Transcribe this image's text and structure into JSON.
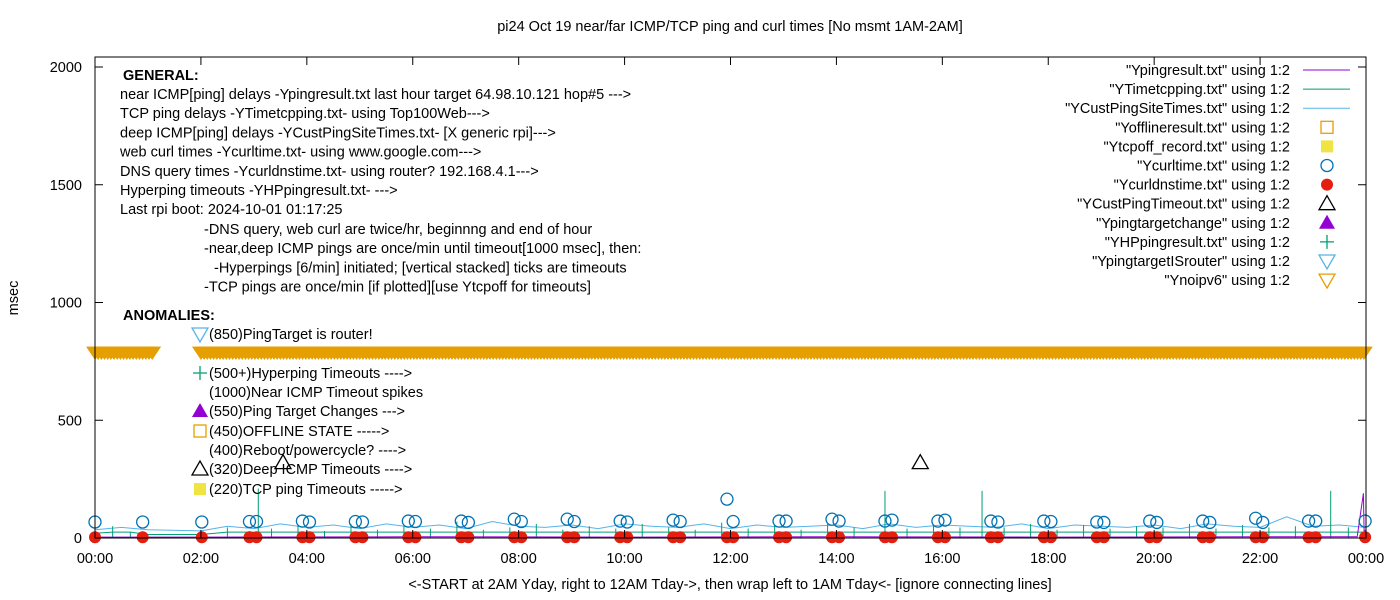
{
  "chart_data": {
    "type": "scatter",
    "title": "pi24 Oct 19  near/far ICMP/TCP ping and curl times [No msmt 1AM-2AM]",
    "xlabel": "<-START at 2AM Yday, right to 12AM Tday->, then wrap left to 1AM Tday<- [ignore connecting lines]",
    "ylabel": "msec",
    "ylim": [
      0,
      2000
    ],
    "yticks": [
      "0",
      "500",
      "1000",
      "1500",
      "2000"
    ],
    "xticks": [
      "00:00",
      "02:00",
      "04:00",
      "06:00",
      "08:00",
      "10:00",
      "12:00",
      "14:00",
      "16:00",
      "18:00",
      "20:00",
      "22:00",
      "00:00"
    ],
    "grid": false,
    "legend_position": "top-right",
    "legend": [
      {
        "label": "\"Ypingresult.txt\" using 1:2",
        "style": "line",
        "color": "#9400d3"
      },
      {
        "label": "\"YTimetcpping.txt\" using 1:2",
        "style": "line",
        "color": "#009e73"
      },
      {
        "label": "\"YCustPingSiteTimes.txt\" using 1:2",
        "style": "line",
        "color": "#56b4e9"
      },
      {
        "label": "\"Yofflineresult.txt\" using 1:2",
        "style": "open-square",
        "color": "#e69f00"
      },
      {
        "label": "\"Ytcpoff_record.txt\" using 1:2",
        "style": "filled-square",
        "color": "#f0e442"
      },
      {
        "label": "\"Ycurltime.txt\" using 1:2",
        "style": "open-circle",
        "color": "#0072b2"
      },
      {
        "label": "\"Ycurldnstime.txt\" using 1:2",
        "style": "filled-circle",
        "color": "#e51e10"
      },
      {
        "label": "\"YCustPingTimeout.txt\" using 1:2",
        "style": "open-triangle",
        "color": "#000000"
      },
      {
        "label": "\"Ypingtargetchange\" using 1:2",
        "style": "filled-triangle",
        "color": "#9400d3"
      },
      {
        "label": "\"YHPpingresult.txt\" using 1:2",
        "style": "plus",
        "color": "#009e73"
      },
      {
        "label": "\"YpingtargetISrouter\" using 1:2",
        "style": "open-down-triangle",
        "color": "#56b4e9"
      },
      {
        "label": "\"Ynoipv6\" using 1:2",
        "style": "open-down-triangle",
        "color": "#e69f00"
      }
    ],
    "series": {
      "pingresult": [
        [
          "00:00",
          4
        ],
        [
          "01:00",
          4
        ],
        [
          "02:00",
          4
        ],
        [
          "06:00",
          5
        ],
        [
          "10:00",
          4
        ],
        [
          "14:00",
          5
        ],
        [
          "18:00",
          4
        ],
        [
          "22:00",
          5
        ],
        [
          "23:50",
          5
        ],
        [
          "23:57",
          190
        ],
        [
          "23:58",
          5
        ]
      ],
      "tcpping": [
        [
          "00:00",
          20
        ],
        [
          "00:20",
          50
        ],
        [
          "00:40",
          25
        ],
        [
          "01:00",
          15
        ],
        [
          "02:00",
          15
        ],
        [
          "02:30",
          45
        ],
        [
          "02:55",
          30
        ],
        [
          "03:05",
          210
        ],
        [
          "03:20",
          40
        ],
        [
          "03:50",
          55
        ],
        [
          "04:20",
          30
        ],
        [
          "04:50",
          60
        ],
        [
          "05:20",
          35
        ],
        [
          "05:50",
          50
        ],
        [
          "06:20",
          40
        ],
        [
          "06:50",
          70
        ],
        [
          "07:20",
          35
        ],
        [
          "07:50",
          45
        ],
        [
          "08:20",
          60
        ],
        [
          "08:50",
          35
        ],
        [
          "09:20",
          50
        ],
        [
          "09:50",
          40
        ],
        [
          "10:20",
          60
        ],
        [
          "10:50",
          45
        ],
        [
          "11:20",
          35
        ],
        [
          "11:50",
          65
        ],
        [
          "12:20",
          40
        ],
        [
          "12:50",
          55
        ],
        [
          "13:20",
          35
        ],
        [
          "13:50",
          60
        ],
        [
          "14:20",
          45
        ],
        [
          "14:55",
          200
        ],
        [
          "15:20",
          40
        ],
        [
          "15:50",
          55
        ],
        [
          "16:20",
          45
        ],
        [
          "16:45",
          200
        ],
        [
          "17:10",
          45
        ],
        [
          "17:40",
          60
        ],
        [
          "18:10",
          35
        ],
        [
          "18:40",
          55
        ],
        [
          "19:10",
          40
        ],
        [
          "19:40",
          50
        ],
        [
          "20:10",
          45
        ],
        [
          "20:40",
          60
        ],
        [
          "21:10",
          40
        ],
        [
          "21:40",
          55
        ],
        [
          "22:10",
          45
        ],
        [
          "22:40",
          50
        ],
        [
          "23:20",
          200
        ],
        [
          "23:40",
          45
        ],
        [
          "23:59",
          35
        ]
      ],
      "custping": [
        [
          "00:00",
          35
        ],
        [
          "00:30",
          45
        ],
        [
          "01:00",
          35
        ],
        [
          "02:00",
          30
        ],
        [
          "02:30",
          50
        ],
        [
          "03:00",
          40
        ],
        [
          "03:30",
          60
        ],
        [
          "04:00",
          45
        ],
        [
          "04:30",
          55
        ],
        [
          "05:00",
          40
        ],
        [
          "05:30",
          60
        ],
        [
          "06:00",
          45
        ],
        [
          "06:30",
          55
        ],
        [
          "07:00",
          40
        ],
        [
          "07:30",
          70
        ],
        [
          "08:00",
          50
        ],
        [
          "08:30",
          45
        ],
        [
          "09:00",
          55
        ],
        [
          "09:30",
          40
        ],
        [
          "10:00",
          60
        ],
        [
          "10:30",
          50
        ],
        [
          "11:00",
          45
        ],
        [
          "11:30",
          60
        ],
        [
          "12:00",
          40
        ],
        [
          "12:30",
          55
        ],
        [
          "13:00",
          45
        ],
        [
          "13:30",
          50
        ],
        [
          "14:00",
          55
        ],
        [
          "14:30",
          40
        ],
        [
          "15:00",
          60
        ],
        [
          "15:30",
          45
        ],
        [
          "16:00",
          55
        ],
        [
          "16:30",
          50
        ],
        [
          "17:00",
          45
        ],
        [
          "17:30",
          60
        ],
        [
          "18:00",
          40
        ],
        [
          "18:30",
          55
        ],
        [
          "19:00",
          50
        ],
        [
          "19:30",
          45
        ],
        [
          "20:00",
          55
        ],
        [
          "20:30",
          40
        ],
        [
          "21:00",
          60
        ],
        [
          "21:30",
          50
        ],
        [
          "22:00",
          45
        ],
        [
          "22:30",
          90
        ],
        [
          "23:00",
          50
        ],
        [
          "23:30",
          55
        ],
        [
          "23:59",
          45
        ]
      ],
      "curltime": [
        [
          "00:00",
          68
        ],
        [
          "00:54",
          68
        ],
        [
          "02:01",
          68
        ],
        [
          "02:55",
          70
        ],
        [
          "03:03",
          70
        ],
        [
          "03:55",
          72
        ],
        [
          "04:03",
          68
        ],
        [
          "04:55",
          70
        ],
        [
          "05:03",
          68
        ],
        [
          "05:55",
          72
        ],
        [
          "06:03",
          70
        ],
        [
          "06:55",
          72
        ],
        [
          "07:03",
          66
        ],
        [
          "07:55",
          80
        ],
        [
          "08:03",
          70
        ],
        [
          "08:55",
          80
        ],
        [
          "09:03",
          70
        ],
        [
          "09:55",
          72
        ],
        [
          "10:03",
          68
        ],
        [
          "10:55",
          76
        ],
        [
          "11:03",
          70
        ],
        [
          "11:56",
          165
        ],
        [
          "12:03",
          70
        ],
        [
          "12:55",
          72
        ],
        [
          "13:03",
          72
        ],
        [
          "13:55",
          80
        ],
        [
          "14:03",
          72
        ],
        [
          "14:55",
          72
        ],
        [
          "15:03",
          76
        ],
        [
          "15:55",
          72
        ],
        [
          "16:03",
          76
        ],
        [
          "16:55",
          72
        ],
        [
          "17:03",
          68
        ],
        [
          "17:55",
          72
        ],
        [
          "18:03",
          70
        ],
        [
          "18:55",
          68
        ],
        [
          "19:03",
          66
        ],
        [
          "19:55",
          72
        ],
        [
          "20:03",
          66
        ],
        [
          "20:55",
          72
        ],
        [
          "21:03",
          66
        ],
        [
          "21:55",
          84
        ],
        [
          "22:03",
          66
        ],
        [
          "22:55",
          72
        ],
        [
          "23:03",
          72
        ],
        [
          "23:59",
          72
        ]
      ],
      "curldnstime": [
        [
          "00:00",
          3
        ],
        [
          "00:54",
          3
        ],
        [
          "02:01",
          3
        ],
        [
          "02:55",
          3
        ],
        [
          "03:03",
          3
        ],
        [
          "03:55",
          3
        ],
        [
          "04:03",
          3
        ],
        [
          "04:55",
          3
        ],
        [
          "05:03",
          3
        ],
        [
          "05:55",
          3
        ],
        [
          "06:03",
          3
        ],
        [
          "06:55",
          3
        ],
        [
          "07:03",
          3
        ],
        [
          "07:55",
          3
        ],
        [
          "08:03",
          3
        ],
        [
          "08:55",
          3
        ],
        [
          "09:03",
          3
        ],
        [
          "09:55",
          3
        ],
        [
          "10:03",
          3
        ],
        [
          "10:55",
          3
        ],
        [
          "11:03",
          3
        ],
        [
          "11:56",
          3
        ],
        [
          "12:03",
          3
        ],
        [
          "12:55",
          3
        ],
        [
          "13:03",
          3
        ],
        [
          "13:55",
          3
        ],
        [
          "14:03",
          3
        ],
        [
          "14:55",
          3
        ],
        [
          "15:03",
          3
        ],
        [
          "15:55",
          3
        ],
        [
          "16:03",
          3
        ],
        [
          "16:55",
          3
        ],
        [
          "17:03",
          3
        ],
        [
          "17:55",
          3
        ],
        [
          "18:03",
          3
        ],
        [
          "18:55",
          3
        ],
        [
          "19:03",
          3
        ],
        [
          "19:55",
          3
        ],
        [
          "20:03",
          3
        ],
        [
          "20:55",
          3
        ],
        [
          "21:03",
          3
        ],
        [
          "21:55",
          3
        ],
        [
          "22:03",
          3
        ],
        [
          "22:55",
          3
        ],
        [
          "23:03",
          3
        ],
        [
          "23:59",
          3
        ]
      ],
      "custpingtimeout": [
        [
          "03:33",
          320
        ],
        [
          "15:35",
          320
        ]
      ],
      "noipv6": {
        "value": 785,
        "ranges": [
          [
            "00:00",
            "01:05"
          ],
          [
            "02:00",
            "23:59"
          ]
        ]
      }
    }
  },
  "annotations": {
    "general_title": "GENERAL:",
    "general": [
      "near ICMP[ping] delays -Ypingresult.txt last hour target 64.98.10.121 hop#5 --->",
      "TCP ping delays -YTimetcpping.txt- using Top100Web--->",
      "deep ICMP[ping] delays -YCustPingSiteTimes.txt- [X generic rpi]--->",
      "web curl times -Ycurltime.txt- using www.google.com--->",
      "DNS query times -Ycurldnstime.txt- using router? 192.168.4.1--->",
      "Hyperping timeouts -YHPpingresult.txt- --->",
      "Last rpi boot: 2024-10-01 01:17:25"
    ],
    "notes": [
      "-DNS query, web curl are twice/hr, beginnng and end of hour",
      "-near,deep ICMP pings are once/min until timeout[1000 msec], then:",
      "-Hyperpings [6/min] initiated; [vertical stacked] ticks are timeouts",
      "-TCP pings are once/min [if plotted][use Ytcpoff for timeouts]"
    ],
    "anomalies_title": "ANOMALIES:",
    "anomalies": [
      {
        "icon": "open-down-triangle",
        "color": "#56b4e9",
        "text": "(850)PingTarget is router!"
      },
      {
        "icon": "plus",
        "color": "#009e73",
        "text": "(500+)Hyperping Timeouts ---->"
      },
      {
        "icon": "none",
        "color": "",
        "text": "(1000)Near ICMP Timeout spikes"
      },
      {
        "icon": "filled-triangle",
        "color": "#9400d3",
        "text": "(550)Ping Target Changes --->"
      },
      {
        "icon": "open-square",
        "color": "#e69f00",
        "text": "(450)OFFLINE STATE ----->"
      },
      {
        "icon": "none",
        "color": "",
        "text": "(400)Reboot/powercycle? ---->"
      },
      {
        "icon": "open-triangle",
        "color": "#000000",
        "text": "(320)Deep ICMP Timeouts ---->"
      },
      {
        "icon": "filled-square",
        "color": "#f0e442",
        "text": "(220)TCP ping Timeouts ----->"
      }
    ]
  }
}
